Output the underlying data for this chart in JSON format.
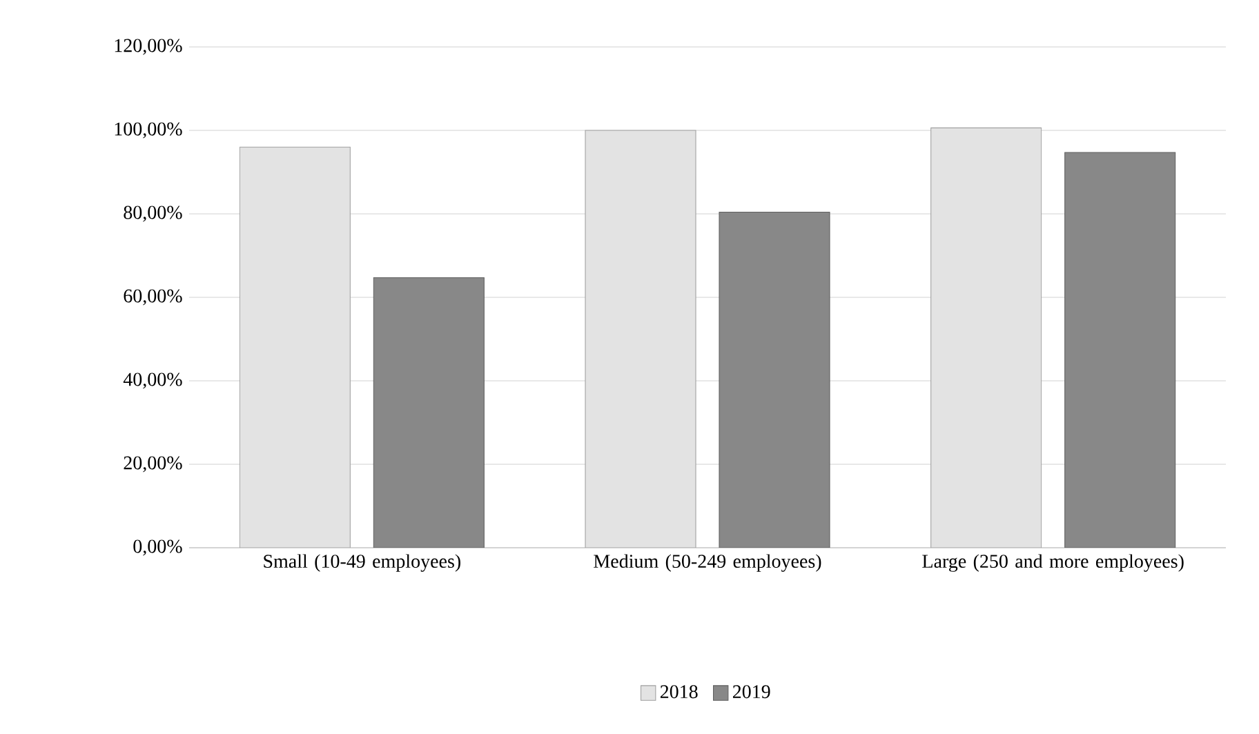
{
  "chart_data": {
    "type": "bar",
    "categories": [
      "Small (10-49 employees)",
      "Medium (50-249 employees)",
      "Large (250 and more employees)"
    ],
    "series": [
      {
        "name": "2018",
        "color": "#e3e3e3",
        "values": [
          96.0,
          100.0,
          100.6
        ]
      },
      {
        "name": "2019",
        "color": "#888888",
        "values": [
          64.7,
          80.4,
          94.7
        ]
      }
    ],
    "ylim": [
      0,
      120
    ],
    "yticks": [
      {
        "value": 0,
        "label": "0,00%"
      },
      {
        "value": 20,
        "label": "20,00%"
      },
      {
        "value": 40,
        "label": "40,00%"
      },
      {
        "value": 60,
        "label": "60,00%"
      },
      {
        "value": 80,
        "label": "80,00%"
      },
      {
        "value": 100,
        "label": "100,00%"
      },
      {
        "value": 120,
        "label": "120,00%"
      }
    ],
    "grid": "y",
    "legend": "bottom"
  }
}
